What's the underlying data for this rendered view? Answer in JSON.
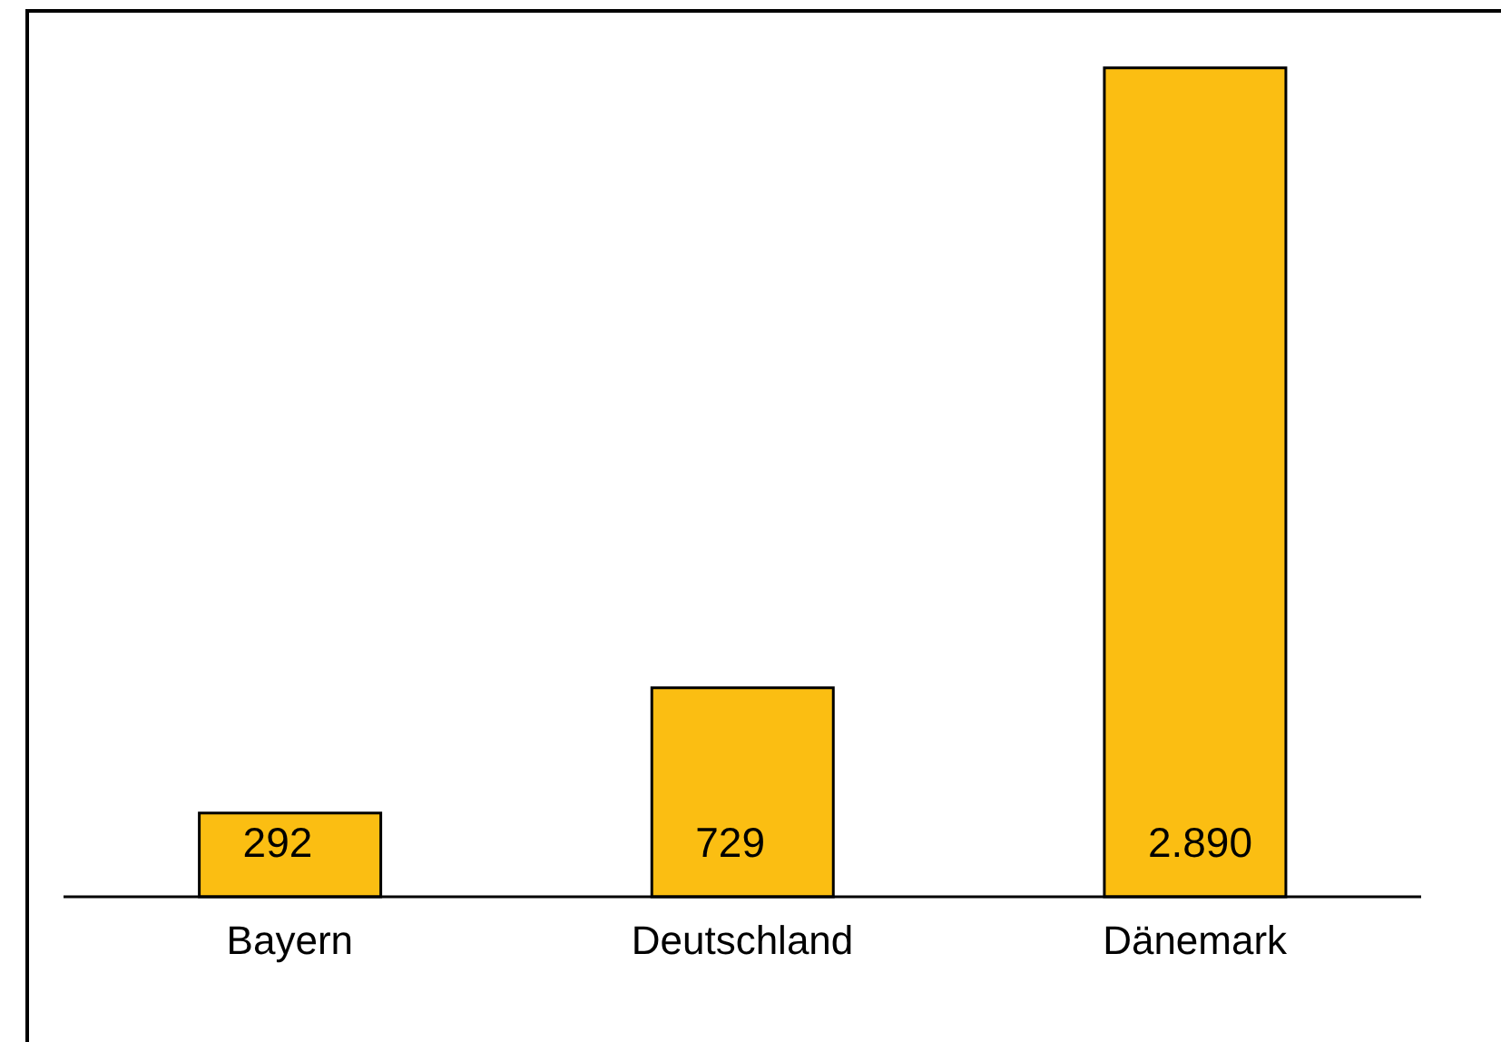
{
  "chart_data": {
    "type": "bar",
    "categories": [
      "Bayern",
      "Deutschland",
      "Dänemark"
    ],
    "values": [
      292,
      729,
      2890
    ],
    "value_labels": [
      "292",
      "729",
      "2.890"
    ],
    "color": "#fbbe12"
  }
}
